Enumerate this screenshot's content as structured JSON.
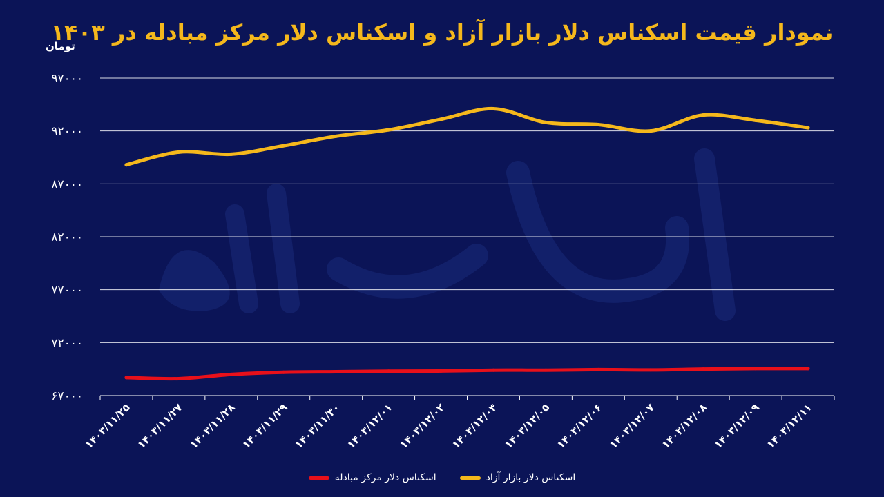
{
  "title": "نمودار قیمت اسکناس دلار بازار آزاد و اسکناس دلار مرکز مبادله در ۱۴۰۳",
  "unit_label": "تومان",
  "colors": {
    "background": "#0b1457",
    "free_market": "#f5b81c",
    "exchange_center": "#e8101a",
    "grid": "#ffffff",
    "text": "#ffffff"
  },
  "watermark": "دنیای اقتصاد",
  "chart_data": {
    "type": "line",
    "title": "نمودار قیمت اسکناس دلار بازار آزاد و اسکناس دلار مرکز مبادله در ۱۴۰۳",
    "ylabel": "تومان",
    "xlabel": "",
    "ylim": [
      67000,
      97000
    ],
    "yticks": [
      67000,
      72000,
      77000,
      82000,
      87000,
      92000,
      97000
    ],
    "ytick_labels": [
      "۶۷۰۰۰",
      "۷۲۰۰۰",
      "۷۷۰۰۰",
      "۸۲۰۰۰",
      "۸۷۰۰۰",
      "۹۲۰۰۰",
      "۹۷۰۰۰"
    ],
    "categories": [
      "۱۴۰۳/۱۱/۲۵",
      "۱۴۰۳/۱۱/۲۷",
      "۱۴۰۳/۱۱/۲۸",
      "۱۴۰۳/۱۱/۲۹",
      "۱۴۰۳/۱۱/۳۰",
      "۱۴۰۳/۱۲/۰۱",
      "۱۴۰۳/۱۲/۰۲",
      "۱۴۰۳/۱۲/۰۴",
      "۱۴۰۳/۱۲/۰۵",
      "۱۴۰۳/۱۲/۰۶",
      "۱۴۰۳/۱۲/۰۷",
      "۱۴۰۳/۱۲/۰۸",
      "۱۴۰۳/۱۲/۰۹",
      "۱۴۰۳/۱۲/۱۱"
    ],
    "grid": true,
    "legend_position": "bottom",
    "series": [
      {
        "name": "اسکناس دلار بازار آزاد",
        "color": "#f5b81c",
        "values": [
          88800,
          90000,
          89800,
          90600,
          91500,
          92100,
          93100,
          94100,
          92800,
          92600,
          92000,
          93500,
          93000,
          92300
        ]
      },
      {
        "name": "اسکناس دلار مرکز مبادله",
        "color": "#e8101a",
        "values": [
          68700,
          68600,
          69000,
          69200,
          69250,
          69300,
          69320,
          69400,
          69400,
          69450,
          69420,
          69500,
          69550,
          69550
        ]
      }
    ]
  }
}
